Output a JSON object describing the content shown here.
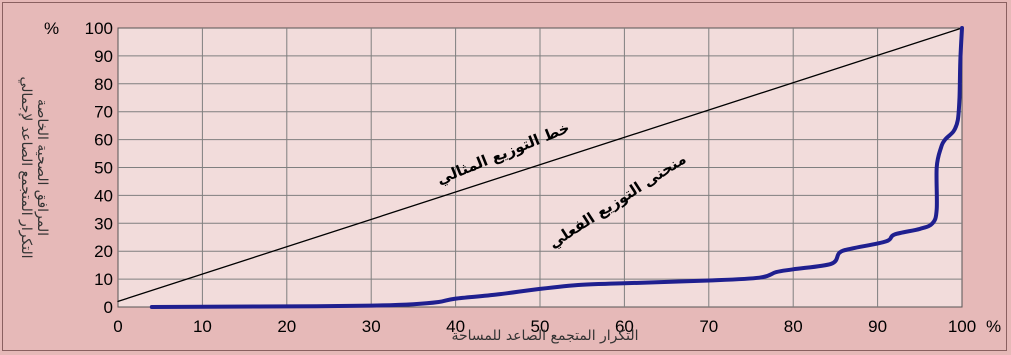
{
  "chart_data": {
    "type": "line",
    "xlabel": "التكرار المتجمع الصاعد للمساحة",
    "ylabel_line1": "التكرار المتجمع الصاعد لإجمالي",
    "ylabel_line2": "المرافق الصحية الخاصة",
    "x_unit": "%",
    "y_unit": "%",
    "xlim": [
      0,
      100
    ],
    "ylim": [
      0,
      100
    ],
    "x_ticks": [
      0,
      10,
      20,
      30,
      40,
      50,
      60,
      70,
      80,
      90,
      100
    ],
    "y_ticks": [
      0,
      10,
      20,
      30,
      40,
      50,
      60,
      70,
      80,
      90,
      100
    ],
    "grid": true,
    "annotations": {
      "ideal_line": "خط التوزيع المثالي",
      "actual_curve": "منحنى التوزيع الفعلي"
    },
    "series": [
      {
        "key": "ideal",
        "color": "#000000",
        "x": [
          0,
          100
        ],
        "y": [
          2,
          100
        ]
      },
      {
        "key": "actual",
        "color": "#1f1f8f",
        "x": [
          4,
          10,
          20,
          30,
          35,
          38,
          40,
          45,
          50,
          55,
          60,
          70,
          76,
          78,
          80,
          84.5,
          85.5,
          87,
          91,
          92,
          95,
          96.5,
          97,
          97,
          97.5,
          98,
          99,
          99.5,
          99.7,
          99.8,
          100
        ],
        "y": [
          0,
          0.1,
          0.2,
          0.5,
          1,
          1.8,
          3,
          4.5,
          6.5,
          8,
          8.5,
          9.5,
          10.5,
          12.5,
          13.5,
          15.5,
          19.5,
          21,
          23.5,
          26,
          28,
          30,
          35,
          50,
          57,
          60,
          63,
          67,
          75,
          88,
          100
        ]
      }
    ]
  }
}
